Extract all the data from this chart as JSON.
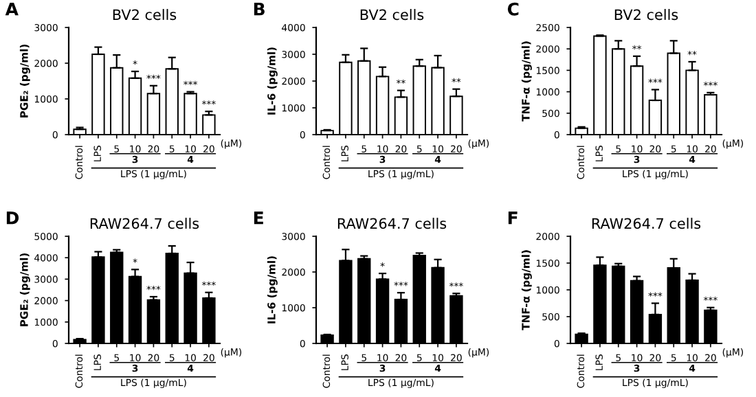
{
  "chart_data": [
    {
      "type": "bar",
      "title": "BV2 cells",
      "ylabel": "PGE₂ (pg/ml)",
      "categories": [
        "Control",
        "LPS",
        "5",
        "10",
        "20",
        "5",
        "10",
        "20"
      ],
      "color": "#ffffff",
      "values": [
        150,
        2250,
        1870,
        1580,
        1150,
        1840,
        1150,
        550
      ],
      "errors": [
        [
          150,
          200
        ],
        [
          2250,
          2450
        ],
        [
          1870,
          2230
        ],
        [
          1580,
          1770
        ],
        [
          1150,
          1370
        ],
        [
          1840,
          2160
        ],
        [
          1150,
          1200
        ],
        [
          550,
          650
        ]
      ],
      "value_labels": [
        null,
        null,
        null,
        "*",
        "***",
        null,
        "***",
        "***"
      ],
      "ylim": [
        0,
        3000
      ],
      "yticks": [
        0,
        1000,
        2000,
        3000
      ],
      "annotations": [
        "A",
        "(μM)",
        "3",
        "4",
        "LPS (1 μg/mL)"
      ]
    },
    {
      "type": "bar",
      "title": "BV2 cells",
      "ylabel": "IL-6 (pg/ml)",
      "categories": [
        "Control",
        "LPS",
        "5",
        "10",
        "20",
        "5",
        "10",
        "20"
      ],
      "color": "#ffffff",
      "values": [
        150,
        2700,
        2750,
        2170,
        1400,
        2560,
        2500,
        1430
      ],
      "errors": [
        [
          150,
          180
        ],
        [
          2700,
          2980
        ],
        [
          2750,
          3220
        ],
        [
          2170,
          2520
        ],
        [
          1400,
          1650
        ],
        [
          2560,
          2800
        ],
        [
          2500,
          2950
        ],
        [
          1430,
          1700
        ]
      ],
      "value_labels": [
        null,
        null,
        null,
        null,
        "**",
        null,
        null,
        "**"
      ],
      "ylim": [
        0,
        4000
      ],
      "yticks": [
        0,
        1000,
        2000,
        3000,
        4000
      ],
      "annotations": [
        "B",
        "(μM)",
        "3",
        "4",
        "LPS (1 μg/mL)"
      ]
    },
    {
      "type": "bar",
      "title": "BV2 cells",
      "ylabel": "TNF-α (pg/ml)",
      "categories": [
        "Control",
        "LPS",
        "5",
        "10",
        "20",
        "5",
        "10",
        "20"
      ],
      "color": "#ffffff",
      "values": [
        150,
        2300,
        2000,
        1600,
        800,
        1900,
        1500,
        930
      ],
      "errors": [
        [
          150,
          180
        ],
        [
          2300,
          2320
        ],
        [
          2000,
          2190
        ],
        [
          1600,
          1830
        ],
        [
          800,
          1050
        ],
        [
          1900,
          2190
        ],
        [
          1500,
          1700
        ],
        [
          930,
          980
        ]
      ],
      "value_labels": [
        null,
        null,
        null,
        "**",
        "***",
        null,
        "**",
        "***"
      ],
      "ylim": [
        0,
        2500
      ],
      "yticks": [
        0,
        500,
        1000,
        1500,
        2000,
        2500
      ],
      "annotations": [
        "C",
        "(μM)",
        "3",
        "4",
        "LPS (1 μg/mL)"
      ]
    },
    {
      "type": "bar",
      "title": "RAW264.7 cells",
      "ylabel": "PGE₂ (pg/ml)",
      "categories": [
        "Control",
        "LPS",
        "5",
        "10",
        "20",
        "5",
        "10",
        "20"
      ],
      "color": "#000000",
      "values": [
        180,
        4030,
        4250,
        3120,
        2030,
        4200,
        3280,
        2120
      ],
      "errors": [
        [
          180,
          220
        ],
        [
          4030,
          4280
        ],
        [
          4250,
          4370
        ],
        [
          3120,
          3450
        ],
        [
          2030,
          2180
        ],
        [
          4200,
          4550
        ],
        [
          3280,
          3780
        ],
        [
          2120,
          2380
        ]
      ],
      "value_labels": [
        null,
        null,
        null,
        "*",
        "***",
        null,
        null,
        "***"
      ],
      "ylim": [
        0,
        5000
      ],
      "yticks": [
        0,
        1000,
        2000,
        3000,
        4000,
        5000
      ],
      "annotations": [
        "D",
        "(μM)",
        "3",
        "4",
        "LPS (1 μg/mL)"
      ]
    },
    {
      "type": "bar",
      "title": "RAW264.7 cells",
      "ylabel": "IL-6 (pg/ml)",
      "categories": [
        "Control",
        "LPS",
        "5",
        "10",
        "20",
        "5",
        "10",
        "20"
      ],
      "color": "#000000",
      "values": [
        230,
        2320,
        2370,
        1800,
        1230,
        2460,
        2120,
        1330
      ],
      "errors": [
        [
          230,
          250
        ],
        [
          2320,
          2630
        ],
        [
          2370,
          2450
        ],
        [
          1800,
          1960
        ],
        [
          1230,
          1420
        ],
        [
          2460,
          2530
        ],
        [
          2120,
          2350
        ],
        [
          1330,
          1400
        ]
      ],
      "value_labels": [
        null,
        null,
        null,
        "*",
        "***",
        null,
        null,
        "***"
      ],
      "ylim": [
        0,
        3000
      ],
      "yticks": [
        0,
        1000,
        2000,
        3000
      ],
      "annotations": [
        "E",
        "(μM)",
        "3",
        "4",
        "LPS (1 μg/mL)"
      ]
    },
    {
      "type": "bar",
      "title": "RAW264.7 cells",
      "ylabel": "TNF-α (pg/ml)",
      "categories": [
        "Control",
        "LPS",
        "5",
        "10",
        "20",
        "5",
        "10",
        "20"
      ],
      "color": "#000000",
      "values": [
        170,
        1460,
        1440,
        1170,
        540,
        1410,
        1180,
        620
      ],
      "errors": [
        [
          170,
          190
        ],
        [
          1460,
          1610
        ],
        [
          1440,
          1490
        ],
        [
          1170,
          1250
        ],
        [
          540,
          750
        ],
        [
          1410,
          1580
        ],
        [
          1180,
          1300
        ],
        [
          620,
          670
        ]
      ],
      "value_labels": [
        null,
        null,
        null,
        null,
        "***",
        null,
        null,
        "***"
      ],
      "ylim": [
        0,
        2000
      ],
      "yticks": [
        0,
        500,
        1000,
        1500,
        2000
      ],
      "annotations": [
        "F",
        "(μM)",
        "3",
        "4",
        "LPS (1 μg/mL)"
      ]
    }
  ]
}
